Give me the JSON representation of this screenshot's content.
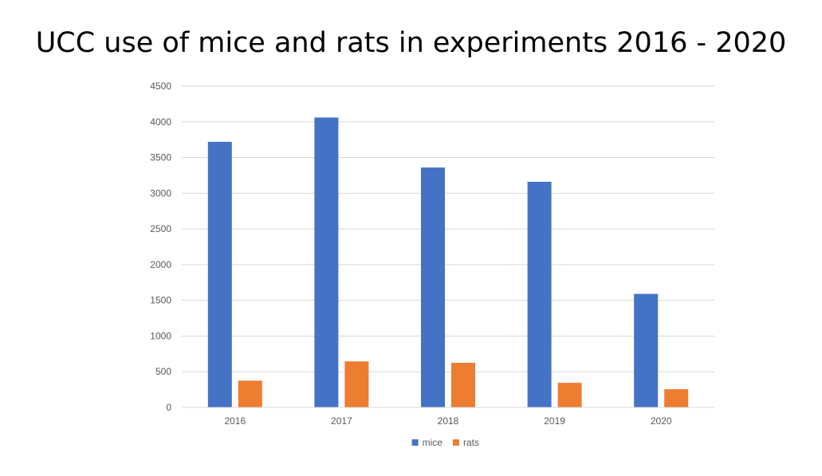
{
  "title": "UCC use of mice and rats in experiments 2016 - 2020",
  "chart_data": {
    "type": "bar",
    "title": "UCC use of mice and rats in experiments 2016 - 2020",
    "xlabel": "",
    "ylabel": "",
    "categories": [
      "2016",
      "2017",
      "2018",
      "2019",
      "2020"
    ],
    "series": [
      {
        "name": "mice",
        "color": "#4472C4",
        "values": [
          3720,
          4060,
          3360,
          3160,
          1590
        ]
      },
      {
        "name": "rats",
        "color": "#ED7D31",
        "values": [
          375,
          645,
          625,
          345,
          255
        ]
      }
    ],
    "ylim": [
      0,
      4500
    ],
    "yticks": [
      "0",
      "500",
      "1000",
      "1500",
      "2000",
      "2500",
      "3000",
      "3500",
      "4000",
      "4500"
    ],
    "grid": true,
    "legend_position": "bottom"
  }
}
